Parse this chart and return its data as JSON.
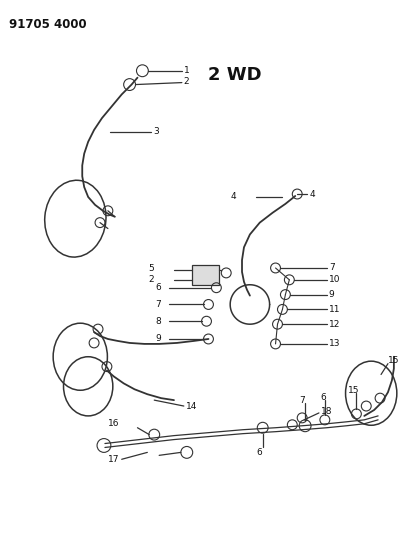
{
  "title": "91705 4000",
  "label_2wd": "2 WD",
  "bg_color": "#ffffff",
  "lc": "#333333",
  "figsize": [
    4.02,
    5.33
  ],
  "dpi": 100
}
